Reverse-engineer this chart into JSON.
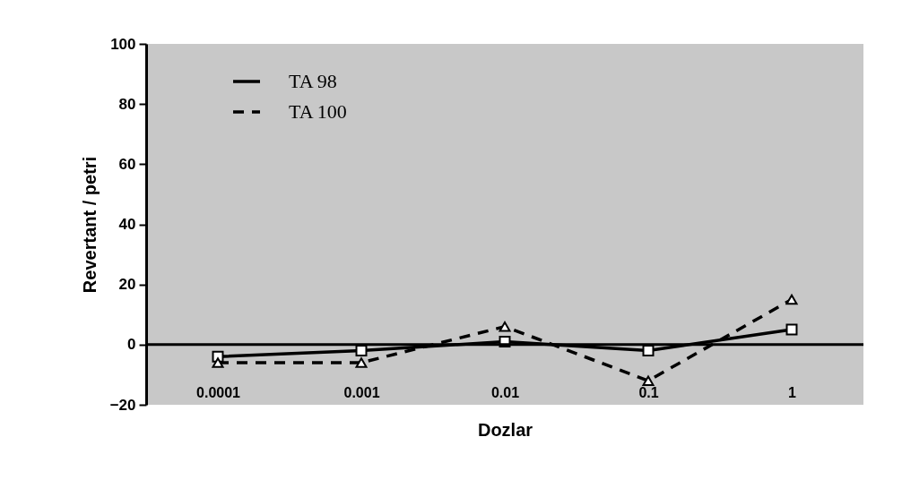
{
  "chart_data": {
    "type": "line",
    "xlabel": "Dozlar",
    "ylabel": "Revertant / petri",
    "categories": [
      "0.0001",
      "0.001",
      "0.01",
      "0.1",
      "1"
    ],
    "series": [
      {
        "name": "TA 98",
        "color": "#000000",
        "line_style": "solid",
        "marker": "square",
        "values": [
          -4,
          -2,
          1,
          -2,
          5
        ]
      },
      {
        "name": "TA 100",
        "color": "#000000",
        "line_style": "dashed",
        "marker": "triangle",
        "values": [
          -6,
          -6,
          6,
          -12,
          15
        ]
      }
    ],
    "ref_lines": [
      {
        "axis": "y",
        "value": 0
      }
    ],
    "ylim": [
      -20,
      100
    ],
    "yticks": [
      -20,
      0,
      20,
      40,
      60,
      80,
      100
    ],
    "grid": false,
    "legend": "top left"
  }
}
